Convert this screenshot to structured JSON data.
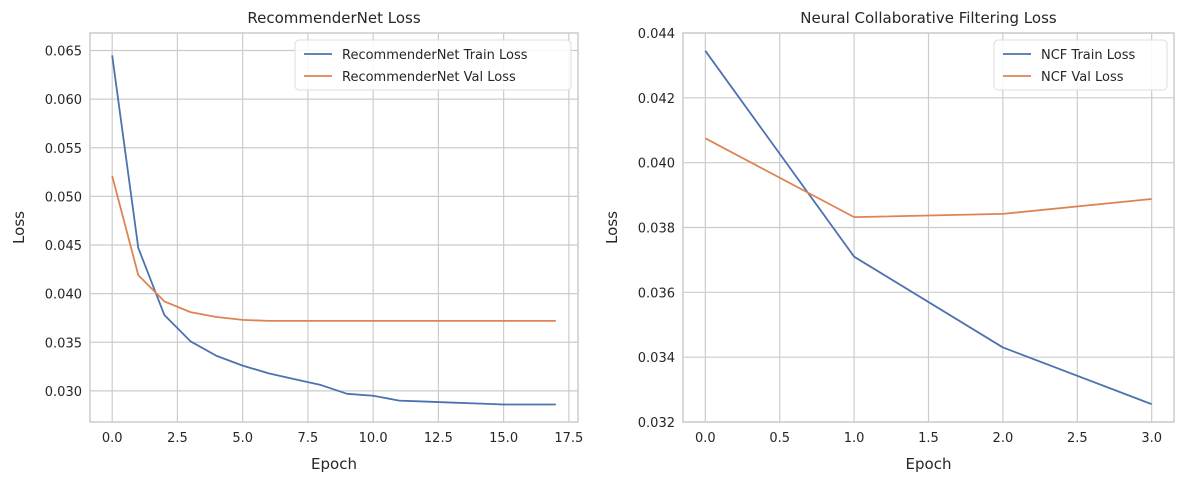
{
  "chart_data": [
    {
      "type": "line",
      "title": "RecommenderNet Loss",
      "xlabel": "Epoch",
      "ylabel": "Loss",
      "xlim": [
        -0.85,
        17.85
      ],
      "ylim": [
        0.0268,
        0.0668
      ],
      "xticks": [
        0,
        2.5,
        5,
        7.5,
        10,
        12.5,
        15,
        17.5
      ],
      "xtick_labels": [
        "0.0",
        "2.5",
        "5.0",
        "7.5",
        "10.0",
        "12.5",
        "15.0",
        "17.5"
      ],
      "yticks": [
        0.03,
        0.035,
        0.04,
        0.045,
        0.05,
        0.055,
        0.06,
        0.065
      ],
      "ytick_labels": [
        "0.030",
        "0.035",
        "0.040",
        "0.045",
        "0.050",
        "0.055",
        "0.060",
        "0.065"
      ],
      "grid": true,
      "legend_position": "top-right",
      "x": [
        0,
        1,
        2,
        3,
        4,
        5,
        6,
        7,
        8,
        9,
        10,
        11,
        12,
        13,
        14,
        15,
        16,
        17
      ],
      "series": [
        {
          "name": "RecommenderNet Train Loss",
          "color": "#4c72b0",
          "values": [
            0.0645,
            0.0447,
            0.0378,
            0.0351,
            0.0336,
            0.0326,
            0.0318,
            0.0312,
            0.0306,
            0.0297,
            0.0295,
            0.029,
            0.0289,
            0.0288,
            0.0287,
            0.0286,
            0.0286,
            0.0286
          ]
        },
        {
          "name": "RecommenderNet Val Loss",
          "color": "#dd8452",
          "values": [
            0.0521,
            0.0419,
            0.0392,
            0.0381,
            0.0376,
            0.0373,
            0.0372,
            0.0372,
            0.0372,
            0.0372,
            0.0372,
            0.0372,
            0.0372,
            0.0372,
            0.0372,
            0.0372,
            0.0372,
            0.0372
          ]
        }
      ]
    },
    {
      "type": "line",
      "title": "Neural Collaborative Filtering Loss",
      "xlabel": "Epoch",
      "ylabel": "Loss",
      "xlim": [
        -0.15,
        3.15
      ],
      "ylim": [
        0.032,
        0.044
      ],
      "xticks": [
        0,
        0.5,
        1,
        1.5,
        2,
        2.5,
        3
      ],
      "xtick_labels": [
        "0.0",
        "0.5",
        "1.0",
        "1.5",
        "2.0",
        "2.5",
        "3.0"
      ],
      "yticks": [
        0.032,
        0.034,
        0.036,
        0.038,
        0.04,
        0.042,
        0.044
      ],
      "ytick_labels": [
        "0.032",
        "0.034",
        "0.036",
        "0.038",
        "0.040",
        "0.042",
        "0.044"
      ],
      "grid": true,
      "legend_position": "top-right",
      "x": [
        0,
        1,
        2,
        3
      ],
      "series": [
        {
          "name": "NCF Train Loss",
          "color": "#4c72b0",
          "values": [
            0.04345,
            0.0371,
            0.0343,
            0.03255
          ]
        },
        {
          "name": "NCF Val Loss",
          "color": "#dd8452",
          "values": [
            0.04075,
            0.03832,
            0.03842,
            0.03888
          ]
        }
      ]
    }
  ]
}
